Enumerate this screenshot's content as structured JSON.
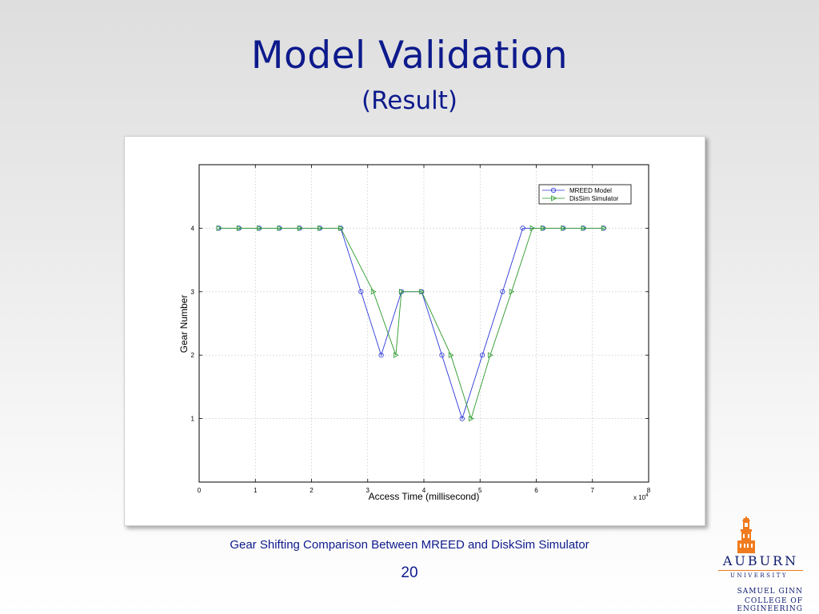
{
  "slide": {
    "title": "Model Validation",
    "subtitle": "(Result)",
    "caption": "Gear Shifting Comparison Between MREED and DiskSim Simulator",
    "page_number": "20"
  },
  "logo": {
    "name": "AUBURN",
    "subname": "UNIVERSITY",
    "college_line1": "SAMUEL GINN",
    "college_line2": "COLLEGE OF ENGINEERING",
    "colors": {
      "navy": "#0d1a6e",
      "orange": "#f07b1f"
    }
  },
  "chart_data": {
    "type": "line",
    "xlabel": "Access Time (millisecond)",
    "ylabel": "Gear Number",
    "x_multiplier": "x 10",
    "x_multiplier_exponent": "4",
    "xlim": [
      0,
      8
    ],
    "ylim": [
      0,
      5
    ],
    "xticks": [
      "0",
      "1",
      "2",
      "3",
      "4",
      "5",
      "6",
      "7",
      "8"
    ],
    "yticks": [
      "1",
      "2",
      "3",
      "4"
    ],
    "grid": true,
    "legend_position": "top-right",
    "series": [
      {
        "name": "MREED Model",
        "color": "#2a36d8",
        "marker": "circle",
        "x": [
          0.35,
          0.71,
          1.07,
          1.43,
          1.79,
          2.15,
          2.52,
          2.88,
          3.24,
          3.6,
          3.96,
          4.32,
          4.68,
          5.04,
          5.4,
          5.76,
          6.12,
          6.48,
          6.84,
          7.2
        ],
        "y": [
          4,
          4,
          4,
          4,
          4,
          4,
          4,
          3,
          2,
          3,
          3,
          2,
          1,
          2,
          3,
          4,
          4,
          4,
          4,
          4
        ]
      },
      {
        "name": "DisSim Simulator",
        "color": "#2a9a2a",
        "marker": "triangle-right",
        "x": [
          0.35,
          0.71,
          1.07,
          1.43,
          1.79,
          2.15,
          2.52,
          3.1,
          3.5,
          3.6,
          3.96,
          4.48,
          4.84,
          5.18,
          5.56,
          5.93,
          6.12,
          6.48,
          6.84,
          7.2
        ],
        "y": [
          4,
          4,
          4,
          4,
          4,
          4,
          4,
          3,
          2,
          3,
          3,
          2,
          1,
          2,
          3,
          4,
          4,
          4,
          4,
          4
        ]
      }
    ]
  }
}
